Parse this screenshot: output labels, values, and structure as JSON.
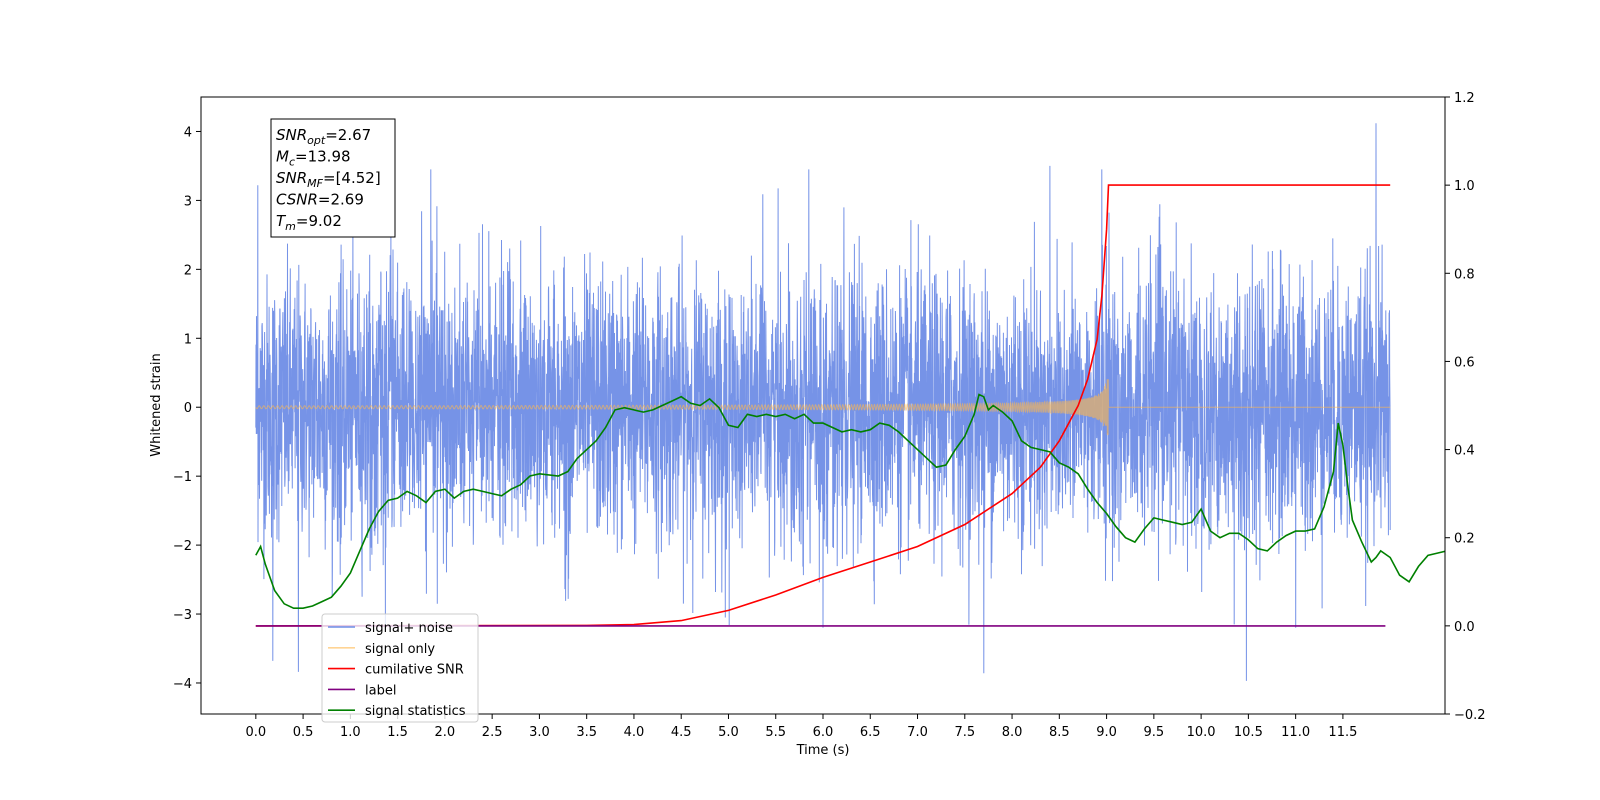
{
  "chart_data": {
    "type": "line",
    "xlabel": "Time (s)",
    "ylabel": "Whitened strain",
    "xlim": [
      -0.58,
      12.58
    ],
    "ylim": [
      -4.45,
      4.5
    ],
    "y2lim": [
      -0.2,
      1.2
    ],
    "x_ticks": [
      0.0,
      0.5,
      1.0,
      1.5,
      2.0,
      2.5,
      3.0,
      3.5,
      4.0,
      4.5,
      5.0,
      5.5,
      6.0,
      6.5,
      7.0,
      7.5,
      8.0,
      8.5,
      9.0,
      9.5,
      10.0,
      10.5,
      11.0,
      11.5
    ],
    "x_tick_labels": [
      "0.0",
      "0.5",
      "1.0",
      "1.5",
      "2.0",
      "2.5",
      "3.0",
      "3.5",
      "4.0",
      "4.5",
      "5.0",
      "5.5",
      "6.0",
      "6.5",
      "7.0",
      "7.5",
      "8.0",
      "8.5",
      "9.0",
      "9.5",
      "10.0",
      "10.5",
      "11.0",
      "11.5"
    ],
    "y_ticks": [
      -4,
      -3,
      -2,
      -1,
      0,
      1,
      2,
      3,
      4
    ],
    "y_tick_labels": [
      "−4",
      "−3",
      "−2",
      "−1",
      "0",
      "1",
      "2",
      "3",
      "4"
    ],
    "y2_ticks": [
      -0.2,
      0.0,
      0.2,
      0.4,
      0.6,
      0.8,
      1.0,
      1.2
    ],
    "y2_tick_labels": [
      "−0.2",
      "0.0",
      "0.2",
      "0.4",
      "0.6",
      "0.8",
      "1.0",
      "1.2"
    ],
    "grid": false,
    "legend_position": "lower-left",
    "annotation_box": {
      "position": "top-left",
      "lines": [
        {
          "main": "SNR",
          "sub": "opt",
          "value": "=2.67"
        },
        {
          "main": "M",
          "sub": "c",
          "value": "=13.98"
        },
        {
          "main": "SNR",
          "sub": "MF",
          "value": "=[4.52]"
        },
        {
          "main": "CSNR",
          "sub": "",
          "value": "=2.69"
        },
        {
          "main": "T",
          "sub": "m",
          "value": "=9.02"
        }
      ]
    },
    "series": [
      {
        "name": "signal+ noise",
        "color": "#6f8de6",
        "axis": "left",
        "kind": "noise",
        "x_range": [
          0.0,
          12.0
        ],
        "typical_range": [
          -2.3,
          2.3
        ],
        "extremes": [
          {
            "x": 0.02,
            "y": 3.22
          },
          {
            "x": 0.18,
            "y": -3.68
          },
          {
            "x": 0.45,
            "y": -3.84
          },
          {
            "x": 1.85,
            "y": 3.45
          },
          {
            "x": 5.85,
            "y": 3.45
          },
          {
            "x": 6.0,
            "y": -3.2
          },
          {
            "x": 7.7,
            "y": -3.86
          },
          {
            "x": 8.4,
            "y": 3.5
          },
          {
            "x": 8.95,
            "y": 3.45
          },
          {
            "x": 10.35,
            "y": -3.15
          },
          {
            "x": 10.48,
            "y": -3.97
          },
          {
            "x": 11.0,
            "y": -3.2
          },
          {
            "x": 11.85,
            "y": -3.15
          },
          {
            "x": 11.85,
            "y": 4.12
          }
        ]
      },
      {
        "name": "signal only",
        "color": "#ffb84d",
        "axis": "left",
        "kind": "chirp",
        "x_range": [
          0.0,
          12.0
        ],
        "merger_time": 9.02,
        "peak_amplitude": 0.45
      },
      {
        "name": "cumilative SNR",
        "color": "#ff0000",
        "axis": "right",
        "points": [
          [
            0.0,
            0.0
          ],
          [
            3.5,
            0.001
          ],
          [
            4.0,
            0.003
          ],
          [
            4.5,
            0.012
          ],
          [
            5.0,
            0.035
          ],
          [
            5.5,
            0.07
          ],
          [
            6.0,
            0.11
          ],
          [
            6.5,
            0.145
          ],
          [
            7.0,
            0.18
          ],
          [
            7.5,
            0.23
          ],
          [
            8.0,
            0.3
          ],
          [
            8.3,
            0.36
          ],
          [
            8.5,
            0.42
          ],
          [
            8.7,
            0.5
          ],
          [
            8.8,
            0.56
          ],
          [
            8.9,
            0.65
          ],
          [
            8.95,
            0.75
          ],
          [
            9.0,
            0.9
          ],
          [
            9.02,
            1.0
          ],
          [
            12.0,
            1.0
          ]
        ]
      },
      {
        "name": "label",
        "color": "#800080",
        "axis": "right",
        "points": [
          [
            0.0,
            0.0
          ],
          [
            11.95,
            0.0
          ]
        ]
      },
      {
        "name": "signal statistics",
        "color": "#008000",
        "axis": "right",
        "points": [
          [
            0.0,
            0.16
          ],
          [
            0.05,
            0.18
          ],
          [
            0.1,
            0.14
          ],
          [
            0.2,
            0.08
          ],
          [
            0.3,
            0.05
          ],
          [
            0.4,
            0.04
          ],
          [
            0.5,
            0.04
          ],
          [
            0.6,
            0.045
          ],
          [
            0.7,
            0.055
          ],
          [
            0.8,
            0.065
          ],
          [
            0.9,
            0.09
          ],
          [
            1.0,
            0.12
          ],
          [
            1.1,
            0.17
          ],
          [
            1.2,
            0.22
          ],
          [
            1.3,
            0.26
          ],
          [
            1.4,
            0.285
          ],
          [
            1.5,
            0.29
          ],
          [
            1.6,
            0.305
          ],
          [
            1.7,
            0.295
          ],
          [
            1.8,
            0.28
          ],
          [
            1.9,
            0.305
          ],
          [
            2.0,
            0.31
          ],
          [
            2.1,
            0.29
          ],
          [
            2.2,
            0.305
          ],
          [
            2.3,
            0.31
          ],
          [
            2.4,
            0.305
          ],
          [
            2.5,
            0.3
          ],
          [
            2.6,
            0.295
          ],
          [
            2.7,
            0.31
          ],
          [
            2.8,
            0.32
          ],
          [
            2.9,
            0.34
          ],
          [
            3.0,
            0.345
          ],
          [
            3.2,
            0.34
          ],
          [
            3.3,
            0.35
          ],
          [
            3.4,
            0.38
          ],
          [
            3.5,
            0.4
          ],
          [
            3.6,
            0.42
          ],
          [
            3.7,
            0.45
          ],
          [
            3.8,
            0.49
          ],
          [
            3.9,
            0.495
          ],
          [
            4.0,
            0.49
          ],
          [
            4.1,
            0.485
          ],
          [
            4.2,
            0.49
          ],
          [
            4.3,
            0.5
          ],
          [
            4.4,
            0.51
          ],
          [
            4.5,
            0.52
          ],
          [
            4.6,
            0.505
          ],
          [
            4.7,
            0.5
          ],
          [
            4.8,
            0.515
          ],
          [
            4.9,
            0.495
          ],
          [
            5.0,
            0.455
          ],
          [
            5.1,
            0.45
          ],
          [
            5.2,
            0.48
          ],
          [
            5.3,
            0.475
          ],
          [
            5.4,
            0.48
          ],
          [
            5.5,
            0.475
          ],
          [
            5.6,
            0.48
          ],
          [
            5.7,
            0.47
          ],
          [
            5.8,
            0.48
          ],
          [
            5.9,
            0.46
          ],
          [
            6.0,
            0.46
          ],
          [
            6.1,
            0.45
          ],
          [
            6.2,
            0.44
          ],
          [
            6.3,
            0.445
          ],
          [
            6.4,
            0.44
          ],
          [
            6.5,
            0.445
          ],
          [
            6.6,
            0.46
          ],
          [
            6.7,
            0.455
          ],
          [
            6.8,
            0.44
          ],
          [
            6.9,
            0.42
          ],
          [
            7.0,
            0.4
          ],
          [
            7.1,
            0.38
          ],
          [
            7.2,
            0.36
          ],
          [
            7.3,
            0.365
          ],
          [
            7.4,
            0.4
          ],
          [
            7.5,
            0.43
          ],
          [
            7.6,
            0.48
          ],
          [
            7.65,
            0.525
          ],
          [
            7.7,
            0.52
          ],
          [
            7.75,
            0.49
          ],
          [
            7.8,
            0.5
          ],
          [
            7.9,
            0.485
          ],
          [
            8.0,
            0.465
          ],
          [
            8.1,
            0.42
          ],
          [
            8.2,
            0.405
          ],
          [
            8.3,
            0.4
          ],
          [
            8.4,
            0.395
          ],
          [
            8.5,
            0.37
          ],
          [
            8.6,
            0.36
          ],
          [
            8.7,
            0.345
          ],
          [
            8.8,
            0.31
          ],
          [
            8.9,
            0.28
          ],
          [
            9.0,
            0.255
          ],
          [
            9.1,
            0.225
          ],
          [
            9.2,
            0.2
          ],
          [
            9.3,
            0.19
          ],
          [
            9.4,
            0.22
          ],
          [
            9.5,
            0.245
          ],
          [
            9.6,
            0.24
          ],
          [
            9.7,
            0.235
          ],
          [
            9.8,
            0.23
          ],
          [
            9.9,
            0.235
          ],
          [
            10.0,
            0.265
          ],
          [
            10.1,
            0.215
          ],
          [
            10.2,
            0.2
          ],
          [
            10.3,
            0.21
          ],
          [
            10.4,
            0.21
          ],
          [
            10.5,
            0.195
          ],
          [
            10.6,
            0.175
          ],
          [
            10.7,
            0.17
          ],
          [
            10.8,
            0.19
          ],
          [
            10.9,
            0.205
          ],
          [
            11.0,
            0.215
          ],
          [
            11.1,
            0.215
          ],
          [
            11.2,
            0.22
          ],
          [
            11.3,
            0.27
          ],
          [
            11.4,
            0.35
          ],
          [
            11.45,
            0.46
          ],
          [
            11.5,
            0.41
          ],
          [
            11.55,
            0.32
          ],
          [
            11.6,
            0.24
          ],
          [
            11.7,
            0.19
          ],
          [
            11.8,
            0.145
          ],
          [
            11.85,
            0.155
          ],
          [
            11.9,
            0.17
          ],
          [
            12.0,
            0.155
          ],
          [
            12.1,
            0.115
          ],
          [
            12.2,
            0.1
          ],
          [
            12.3,
            0.135
          ],
          [
            12.4,
            0.16
          ],
          [
            12.5,
            0.165
          ],
          [
            12.6,
            0.17
          ]
        ]
      }
    ]
  }
}
